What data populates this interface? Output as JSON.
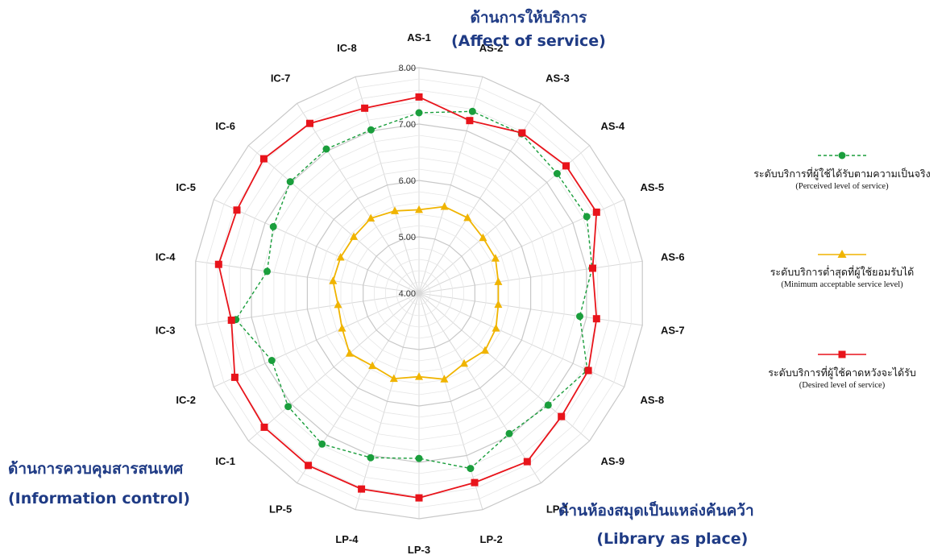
{
  "chart_data": {
    "type": "radar",
    "categories": [
      "AS-1",
      "AS-2",
      "AS-3",
      "AS-4",
      "AS-5",
      "AS-6",
      "AS-7",
      "AS-8",
      "AS-9",
      "LP-1",
      "LP-2",
      "LP-3",
      "LP-4",
      "LP-5",
      "IC-1",
      "IC-2",
      "IC-3",
      "IC-4",
      "IC-5",
      "IC-6",
      "IC-7",
      "IC-8"
    ],
    "rlim": [
      4,
      8
    ],
    "rticks": [
      "4.00",
      "5.00",
      "6.00",
      "7.00",
      "8.00"
    ],
    "series": [
      {
        "name_th": "ระดับบริการที่ผู้ใช้ได้รับตามความเป็นจริง",
        "name_en": "(Perceived level of service)",
        "color": "#1a9e3c",
        "marker": "circle",
        "dash": true,
        "values": [
          7.2,
          7.36,
          7.36,
          7.24,
          7.27,
          7.1,
          6.88,
          7.28,
          7.03,
          6.96,
          7.24,
          6.93,
          7.04,
          7.18,
          7.07,
          6.87,
          7.28,
          6.72,
          6.84,
          7.02,
          7.04,
          7.02
        ]
      },
      {
        "name_th": "ระดับบริการต่ำสุดที่ผู้ใช้ยอมรับได้",
        "name_en": "(Minimum acceptable service level)",
        "color": "#f0b400",
        "marker": "triangle",
        "dash": false,
        "values": [
          5.48,
          5.6,
          5.59,
          5.5,
          5.49,
          5.42,
          5.42,
          5.5,
          5.55,
          5.48,
          5.59,
          5.48,
          5.58,
          5.53,
          5.63,
          5.5,
          5.45,
          5.54,
          5.53,
          5.53,
          5.58,
          5.52
        ]
      },
      {
        "name_th": "ระดับบริการที่ผู้ใช้คาดหวังจะได้รับ",
        "name_en": "(Desired level of service)",
        "color": "#e8141b",
        "marker": "square",
        "dash": false,
        "values": [
          7.48,
          7.19,
          7.38,
          7.45,
          7.46,
          7.11,
          7.18,
          7.3,
          7.34,
          7.55,
          7.5,
          7.63,
          7.62,
          7.63,
          7.63,
          7.59,
          7.36,
          7.59,
          7.55,
          7.64,
          7.58,
          7.42
        ]
      }
    ]
  },
  "groups": {
    "service_th": "ด้านการให้บริการ",
    "service_en": "(Affect of service)",
    "info_th": "ด้านการควบคุมสารสนเทศ",
    "info_en": "(Information control)",
    "library_th": "ด้านห้องสมุดเป็นแหล่งค้นคว้า",
    "library_en": "(Library as place)"
  }
}
